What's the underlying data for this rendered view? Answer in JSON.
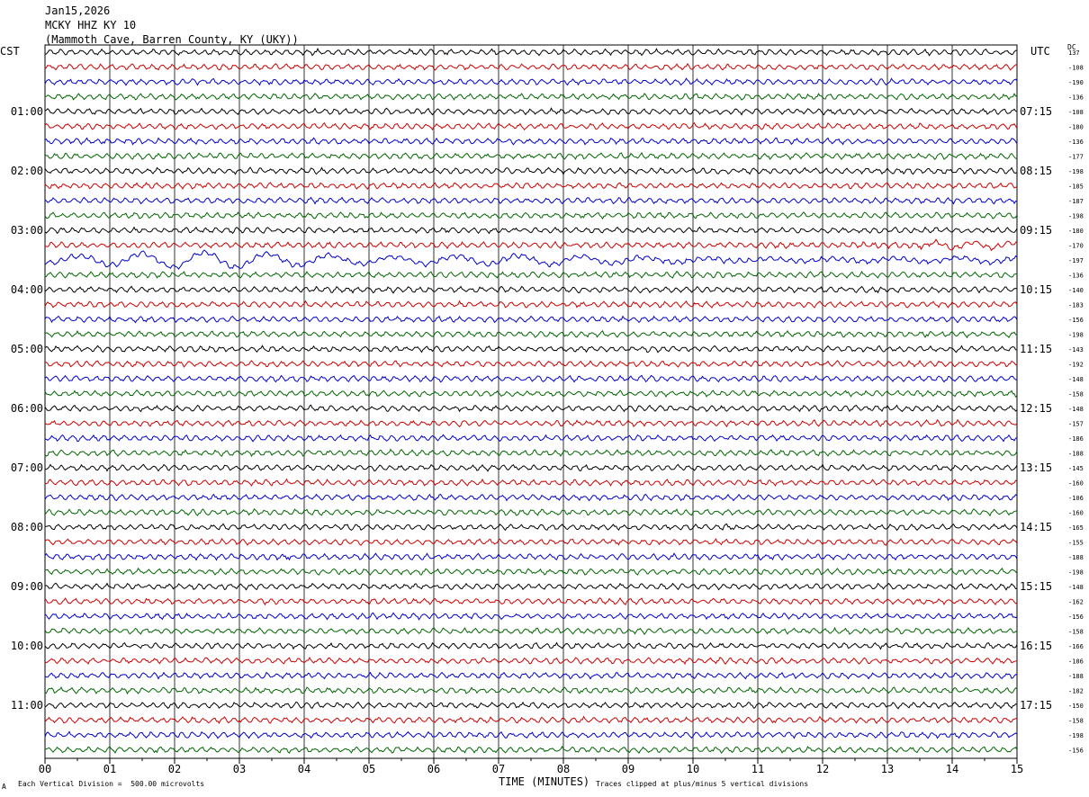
{
  "header": {
    "date": "Jan15,2026",
    "station": "MCKY HHZ KY 10",
    "location": "(Mammoth Cave, Barren County, KY (UKY))"
  },
  "left_zone": "CST",
  "right_zone": "UTC",
  "dc_label": "DC",
  "footer": {
    "scale_note": "Each Vertical Division =  500.00 microvolts",
    "clip_note": "Traces clipped at plus/minus 5 vertical divisions",
    "corner_mark": "A"
  },
  "chart_data": {
    "type": "line",
    "title": "",
    "xlabel": "TIME (MINUTES)",
    "xlim": [
      0,
      15
    ],
    "x_ticks": [
      "00",
      "01",
      "02",
      "03",
      "04",
      "05",
      "06",
      "07",
      "08",
      "09",
      "10",
      "11",
      "12",
      "13",
      "14",
      "15"
    ],
    "rows_per_hour": 4,
    "trace_colors": [
      "#000000",
      "#cc0000",
      "#0000cc",
      "#006600"
    ],
    "left_hour_labels": [
      "01:00",
      "02:00",
      "03:00",
      "04:00",
      "05:00",
      "06:00",
      "07:00",
      "08:00",
      "09:00",
      "10:00",
      "11:00"
    ],
    "right_hour_labels": [
      "07:15",
      "08:15",
      "09:15",
      "10:15",
      "11:15",
      "12:15",
      "13:15",
      "14:15",
      "15:15",
      "16:15",
      "17:15"
    ],
    "dc_offsets": [
      "137",
      "108",
      "190",
      "136",
      "108",
      "180",
      "136",
      "177",
      "198",
      "185",
      "187",
      "198",
      "180",
      "170",
      "197",
      "136",
      "140",
      "183",
      "156",
      "198",
      "143",
      "192",
      "148",
      "158",
      "148",
      "157",
      "186",
      "188",
      "145",
      "160",
      "106",
      "160",
      "165",
      "155",
      "188",
      "198",
      "148",
      "162",
      "156",
      "158",
      "166",
      "186",
      "188",
      "182",
      "150",
      "158",
      "198",
      "156"
    ],
    "event_traces": [
      {
        "row": 14,
        "note": "large-amplitude surface waves"
      },
      {
        "row": 13,
        "note": "moderate waves near end"
      }
    ]
  }
}
